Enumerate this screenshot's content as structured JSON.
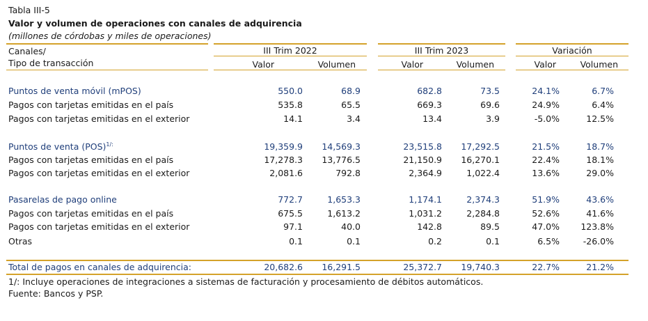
{
  "table": {
    "label": "Tabla III-5",
    "title": "Valor y volumen de operaciones con canales de adquirencia",
    "subtitle": "(millones de córdobas y miles de operaciones)",
    "header": {
      "col0_line1": "Canales/",
      "col0_line2": "Tipo de transacción",
      "groups": [
        "III Trim 2022",
        "III Trim 2023",
        "Variación"
      ],
      "sub": [
        "Valor",
        "Volumen",
        "Valor",
        "Volumen",
        "Valor",
        "Volumen"
      ]
    },
    "rows": [
      {
        "label": "Puntos de venta móvil (mPOS)",
        "sup": "",
        "cells": [
          "550.0",
          "68.9",
          "682.8",
          "73.5",
          "24.1%",
          "6.7%"
        ]
      },
      {
        "label": "Pagos con tarjetas emitidas en el país",
        "sup": "",
        "cells": [
          "535.8",
          "65.5",
          "669.3",
          "69.6",
          "24.9%",
          "6.4%"
        ]
      },
      {
        "label": "Pagos con tarjetas emitidas en el exterior",
        "sup": "",
        "cells": [
          "14.1",
          "3.4",
          "13.4",
          "3.9",
          "-5.0%",
          "12.5%"
        ]
      },
      {
        "label": "Puntos de venta (POS)",
        "sup": "1/:",
        "cells": [
          "19,359.9",
          "14,569.3",
          "23,515.8",
          "17,292.5",
          "21.5%",
          "18.7%"
        ]
      },
      {
        "label": "Pagos con tarjetas emitidas en el país",
        "sup": "",
        "cells": [
          "17,278.3",
          "13,776.5",
          "21,150.9",
          "16,270.1",
          "22.4%",
          "18.1%"
        ]
      },
      {
        "label": "Pagos con tarjetas emitidas en el exterior",
        "sup": "",
        "cells": [
          "2,081.6",
          "792.8",
          "2,364.9",
          "1,022.4",
          "13.6%",
          "29.0%"
        ]
      },
      {
        "label": "Pasarelas de pago online",
        "sup": "",
        "cells": [
          "772.7",
          "1,653.3",
          "1,174.1",
          "2,374.3",
          "51.9%",
          "43.6%"
        ]
      },
      {
        "label": "Pagos con tarjetas emitidas en el país",
        "sup": "",
        "cells": [
          "675.5",
          "1,613.2",
          "1,031.2",
          "2,284.8",
          "52.6%",
          "41.6%"
        ]
      },
      {
        "label": "Pagos con tarjetas emitidas en el exterior",
        "sup": "",
        "cells": [
          "97.1",
          "40.0",
          "142.8",
          "89.5",
          "47.0%",
          "123.8%"
        ]
      },
      {
        "label": "Otras",
        "sup": "",
        "cells": [
          "0.1",
          "0.1",
          "0.2",
          "0.1",
          "6.5%",
          "-26.0%"
        ]
      }
    ],
    "total": {
      "label": "Total de pagos en canales de adquirencia:",
      "cells": [
        "20,682.6",
        "16,291.5",
        "25,372.7",
        "19,740.3",
        "22.7%",
        "21.2%"
      ]
    },
    "footnote": "1/: Incluye operaciones de integraciones a sistemas de facturación y procesamiento de débitos automáticos.",
    "source": "Fuente: Bancos y PSP."
  }
}
